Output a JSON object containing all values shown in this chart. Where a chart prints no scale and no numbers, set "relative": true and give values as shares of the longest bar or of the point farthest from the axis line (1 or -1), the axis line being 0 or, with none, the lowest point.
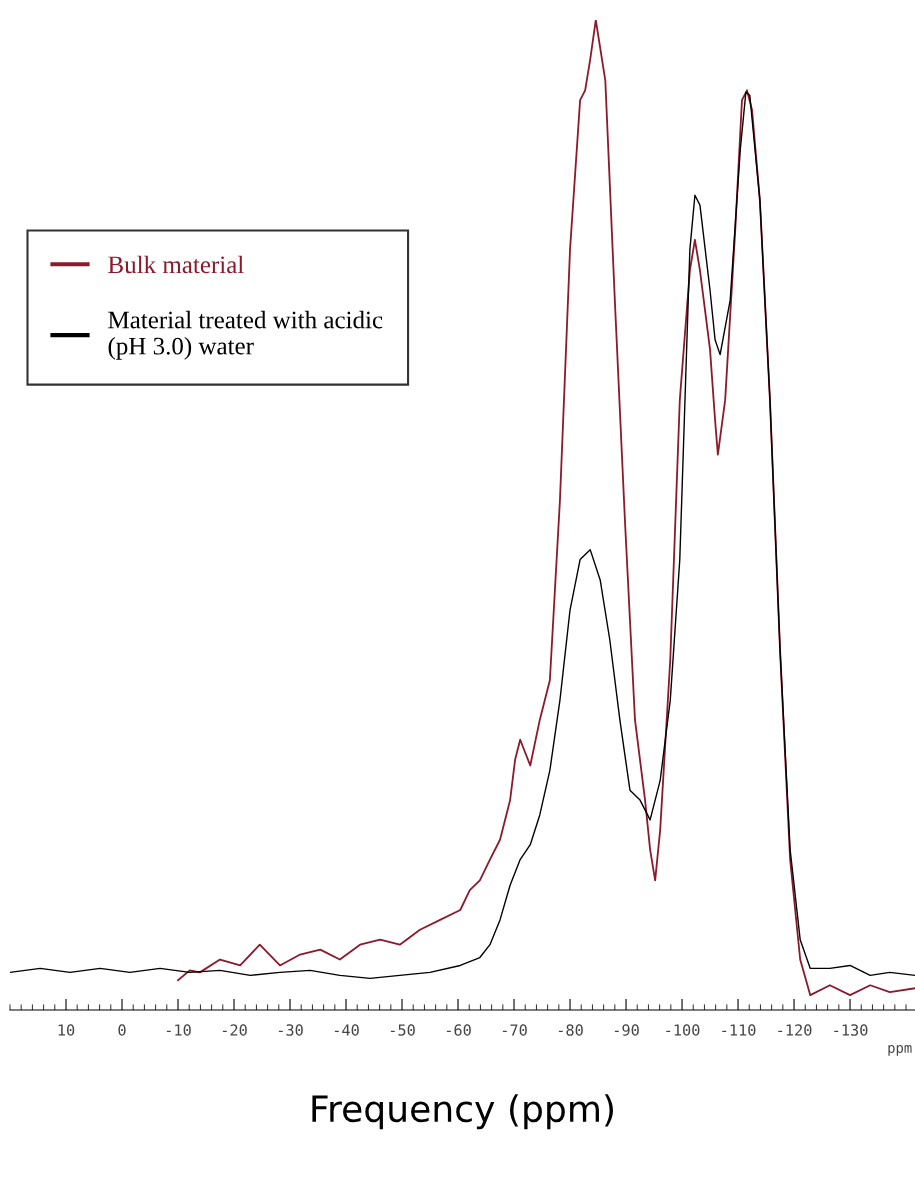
{
  "chart_data": {
    "type": "line",
    "relative": true,
    "xlabel": "Frequency (ppm)",
    "xlim": [
      20,
      -141.6
    ],
    "xticks": [
      10,
      0,
      -10,
      -20,
      -30,
      -40,
      -50,
      -60,
      -70,
      -80,
      -90,
      -100,
      -110,
      -120,
      -130
    ],
    "annotations": [
      "ppm"
    ],
    "legend": "top left",
    "grid": false,
    "marker": "none",
    "line_style": "solid",
    "series": [
      {
        "name": "Bulk material",
        "color": "#8b1a2b",
        "x": [
          -10.0,
          -12.1,
          -13.9,
          -17.5,
          -21.1,
          -24.6,
          -28.2,
          -31.8,
          -35.4,
          -38.9,
          -42.5,
          -46.1,
          -49.6,
          -53.2,
          -56.8,
          -60.4,
          -62.1,
          -63.9,
          -65.7,
          -67.5,
          -69.3,
          -70.2,
          -71.1,
          -72.9,
          -74.6,
          -76.4,
          -78.2,
          -80.0,
          -81.8,
          -82.7,
          -83.6,
          -84.6,
          -86.3,
          -88.0,
          -89.8,
          -91.6,
          -93.4,
          -94.3,
          -95.2,
          -96.1,
          -97.9,
          -99.6,
          -101.4,
          -102.3,
          -103.2,
          -105.0,
          -105.9,
          -106.4,
          -107.7,
          -109.5,
          -110.7,
          -111.6,
          -112.5,
          -113.9,
          -115.7,
          -117.5,
          -119.3,
          -121.1,
          -122.9,
          -126.4,
          -130.0,
          -133.6,
          -137.1,
          -141.6
        ],
        "values": [
          0.03,
          0.04,
          0.038,
          0.051,
          0.045,
          0.066,
          0.045,
          0.056,
          0.061,
          0.051,
          0.066,
          0.071,
          0.066,
          0.081,
          0.091,
          0.101,
          0.121,
          0.131,
          0.152,
          0.172,
          0.212,
          0.253,
          0.273,
          0.247,
          0.293,
          0.333,
          0.515,
          0.768,
          0.919,
          0.929,
          0.96,
          1.0,
          0.939,
          0.717,
          0.495,
          0.293,
          0.212,
          0.162,
          0.131,
          0.182,
          0.354,
          0.616,
          0.747,
          0.778,
          0.747,
          0.667,
          0.596,
          0.561,
          0.616,
          0.788,
          0.919,
          0.929,
          0.909,
          0.818,
          0.616,
          0.364,
          0.152,
          0.051,
          0.015,
          0.025,
          0.015,
          0.025,
          0.018,
          0.022
        ]
      },
      {
        "name": "Material treated with acidic\n(pH 3.0) water",
        "color": "#000000",
        "x": [
          20.0,
          14.6,
          9.3,
          3.9,
          -1.4,
          -6.8,
          -12.1,
          -17.5,
          -22.9,
          -28.2,
          -33.6,
          -38.9,
          -44.3,
          -49.6,
          -55.0,
          -60.4,
          -63.9,
          -65.7,
          -67.5,
          -69.3,
          -71.1,
          -72.9,
          -74.6,
          -76.4,
          -78.2,
          -80.0,
          -81.8,
          -83.6,
          -85.4,
          -87.1,
          -88.9,
          -90.7,
          -92.5,
          -94.3,
          -96.1,
          -97.9,
          -99.6,
          -101.4,
          -102.3,
          -103.2,
          -105.0,
          -105.9,
          -106.8,
          -108.6,
          -110.4,
          -111.4,
          -112.1,
          -113.9,
          -115.7,
          -117.5,
          -119.3,
          -121.1,
          -122.9,
          -126.4,
          -130.0,
          -133.6,
          -137.1,
          -141.6
        ],
        "values": [
          0.038,
          0.042,
          0.038,
          0.042,
          0.038,
          0.042,
          0.038,
          0.04,
          0.035,
          0.038,
          0.04,
          0.035,
          0.032,
          0.035,
          0.038,
          0.045,
          0.053,
          0.066,
          0.091,
          0.126,
          0.152,
          0.167,
          0.197,
          0.242,
          0.313,
          0.404,
          0.455,
          0.465,
          0.434,
          0.374,
          0.293,
          0.222,
          0.212,
          0.192,
          0.232,
          0.313,
          0.455,
          0.768,
          0.823,
          0.813,
          0.727,
          0.677,
          0.662,
          0.717,
          0.869,
          0.927,
          0.924,
          0.818,
          0.616,
          0.364,
          0.162,
          0.071,
          0.042,
          0.042,
          0.045,
          0.035,
          0.038,
          0.035
        ]
      }
    ]
  }
}
